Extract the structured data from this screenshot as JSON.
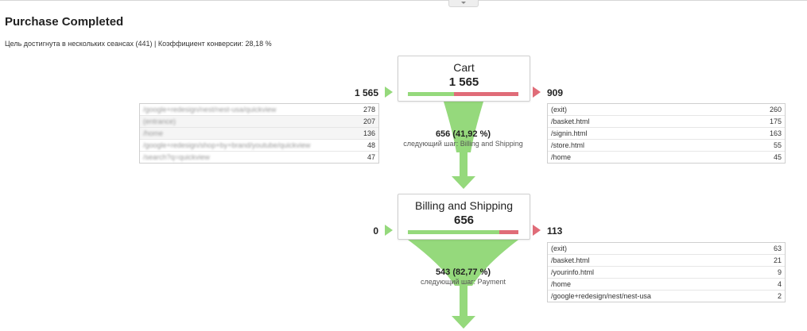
{
  "report_title": "Purchase Completed",
  "summary": "Цель достигнута в нескольких сеансах (441) | Коэффициент конверсии: 28,18 %",
  "colors": {
    "proceed": "#95d97c",
    "exit": "#e06c78"
  },
  "steps": [
    {
      "name": "Cart",
      "count": "1 565",
      "entrances": "1 565",
      "exits": "909",
      "proceed_fraction": 0.4192,
      "sources": [
        {
          "page": "/google+redesign/nest/nest-usa/quickview",
          "count": "278"
        },
        {
          "page": "(entrance)",
          "count": "207"
        },
        {
          "page": "/home",
          "count": "136"
        },
        {
          "page": "/google+redesign/shop+by+brand/youtube/quickview",
          "count": "48"
        },
        {
          "page": "/search?q=quickview",
          "count": "47"
        }
      ],
      "exit_pages": [
        {
          "page": "(exit)",
          "count": "260"
        },
        {
          "page": "/basket.html",
          "count": "175"
        },
        {
          "page": "/signin.html",
          "count": "163"
        },
        {
          "page": "/store.html",
          "count": "55"
        },
        {
          "page": "/home",
          "count": "45"
        }
      ],
      "conversion": "656 (41,92 %)",
      "next_step_label": "следующий шаг: Billing and Shipping"
    },
    {
      "name": "Billing and Shipping",
      "count": "656",
      "entrances": "0",
      "exits": "113",
      "proceed_fraction": 0.8277,
      "exit_pages": [
        {
          "page": "(exit)",
          "count": "63"
        },
        {
          "page": "/basket.html",
          "count": "21"
        },
        {
          "page": "/yourinfo.html",
          "count": "9"
        },
        {
          "page": "/home",
          "count": "4"
        },
        {
          "page": "/google+redesign/nest/nest-usa",
          "count": "2"
        }
      ],
      "conversion": "543 (82,77 %)",
      "next_step_label": "следующий шаг: Payment"
    }
  ]
}
